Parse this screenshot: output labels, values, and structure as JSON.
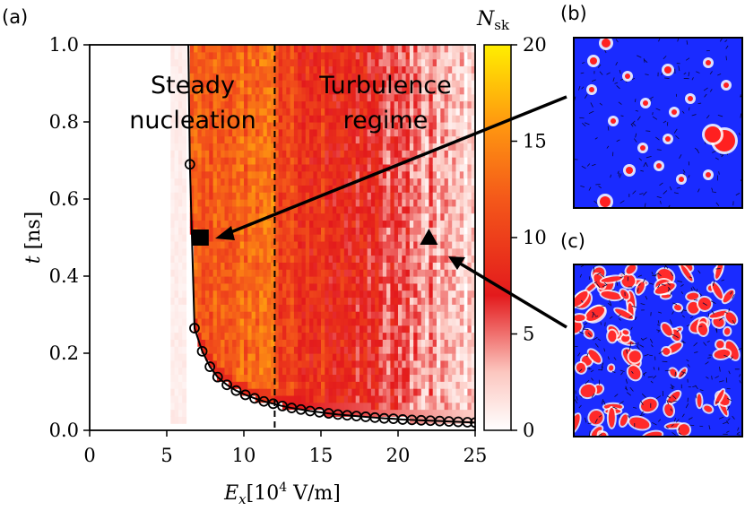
{
  "chart_data": {
    "type": "heatmap",
    "panel_labels": [
      "(a)",
      "(b)",
      "(c)"
    ],
    "xlabel_main": "E",
    "xlabel_sub": "x",
    "xlabel_unit_open": "[10",
    "xlabel_unit_exp": "4",
    "xlabel_unit_close": " V/m]",
    "ylabel_main": "t",
    "ylabel_unit": " [ns]",
    "xlim": [
      0,
      25
    ],
    "ylim": [
      0,
      1.0
    ],
    "x_ticks": [
      "0",
      "5",
      "10",
      "15",
      "20",
      "25"
    ],
    "y_ticks": [
      "0.0",
      "0.2",
      "0.4",
      "0.6",
      "0.8",
      "1.0"
    ],
    "colorbar_title_main": "N",
    "colorbar_title_sub": "sk",
    "colorbar_range": [
      0,
      20
    ],
    "colorbar_ticks": [
      "0",
      "5",
      "10",
      "15",
      "20"
    ],
    "regions": [
      {
        "lines": [
          "Steady",
          "nucleation"
        ]
      },
      {
        "lines": [
          "Turbulence",
          "regime"
        ]
      }
    ],
    "dashed_line_x": 12,
    "boundary_curve": {
      "x": [
        6.5,
        6.8,
        7.3,
        7.8,
        8.3,
        8.9,
        9.5,
        10.1,
        10.7,
        11.3,
        11.9,
        12.5,
        13.1,
        13.7,
        14.3,
        14.9,
        15.5,
        16.1,
        16.7,
        17.3,
        17.9,
        18.5,
        19.1,
        19.7,
        20.3,
        20.9,
        21.5,
        22.1,
        22.7,
        23.3,
        23.9,
        24.5,
        25.0
      ],
      "y": [
        0.69,
        0.265,
        0.205,
        0.165,
        0.138,
        0.118,
        0.103,
        0.092,
        0.083,
        0.075,
        0.069,
        0.063,
        0.058,
        0.054,
        0.05,
        0.047,
        0.044,
        0.041,
        0.039,
        0.037,
        0.035,
        0.033,
        0.031,
        0.03,
        0.028,
        0.027,
        0.026,
        0.025,
        0.024,
        0.023,
        0.022,
        0.021,
        0.02
      ]
    },
    "markers": [
      {
        "shape": "square",
        "x": 7.2,
        "y": 0.5
      },
      {
        "shape": "triangle",
        "x": 22.0,
        "y": 0.5
      }
    ],
    "colors": {
      "low": "#ffffff",
      "mid": "#e31a1c",
      "high": "#ffee00",
      "skyrmion_background": "#1a2bff",
      "skyrmion_core": "#ff2020"
    }
  }
}
